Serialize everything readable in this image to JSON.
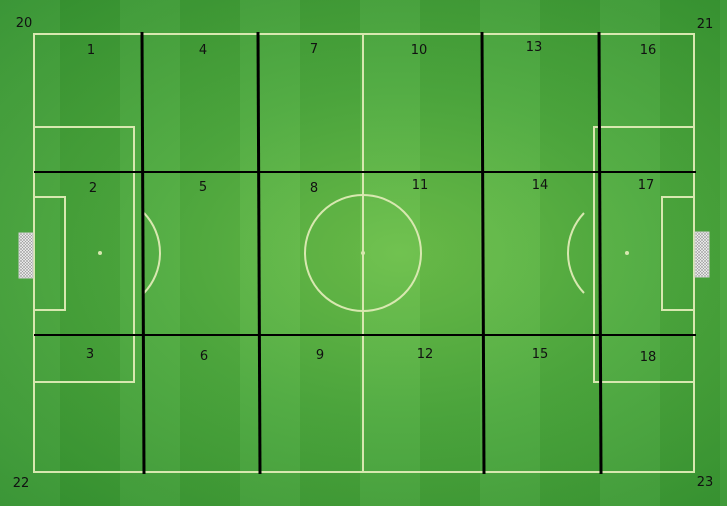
{
  "zones": [
    "1",
    "2",
    "3",
    "4",
    "5",
    "6",
    "7",
    "8",
    "9",
    "10",
    "11",
    "12",
    "13",
    "14",
    "15",
    "16",
    "17",
    "18"
  ],
  "corners": {
    "top_left": "20",
    "top_right": "21",
    "bottom_left": "22",
    "bottom_right": "23"
  },
  "colors": {
    "field": "#4eaa3e",
    "field_lines": "#d8e8b0",
    "grid_lines": "#000000"
  }
}
